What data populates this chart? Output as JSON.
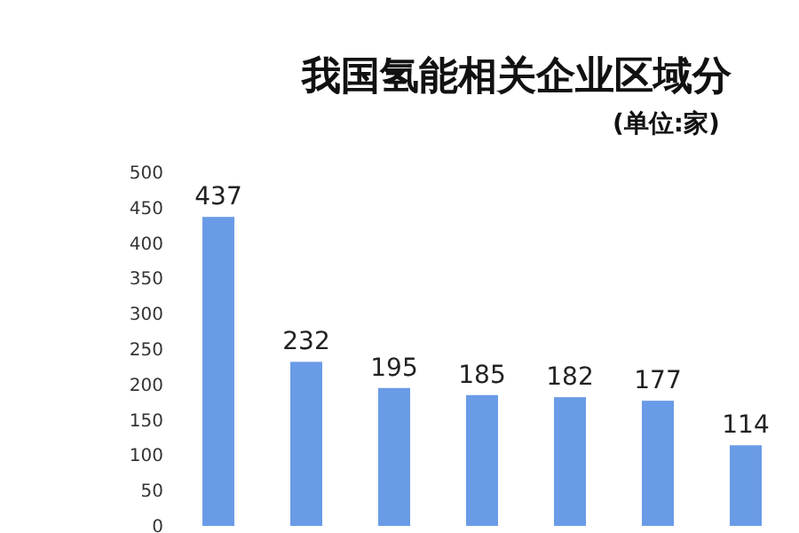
{
  "chart_data": {
    "type": "bar",
    "title": "我国氢能相关企业区域分",
    "subtitle": "(单位:家)",
    "categories": [
      null,
      null,
      null,
      null,
      null,
      null,
      null
    ],
    "values": [
      437,
      232,
      195,
      185,
      182,
      177,
      114
    ],
    "color": "#6a9be6",
    "ylim": [
      0,
      500
    ],
    "yticks": [
      0,
      50,
      100,
      150,
      200,
      250,
      300,
      350,
      400,
      450,
      500
    ],
    "data_labels": true
  }
}
